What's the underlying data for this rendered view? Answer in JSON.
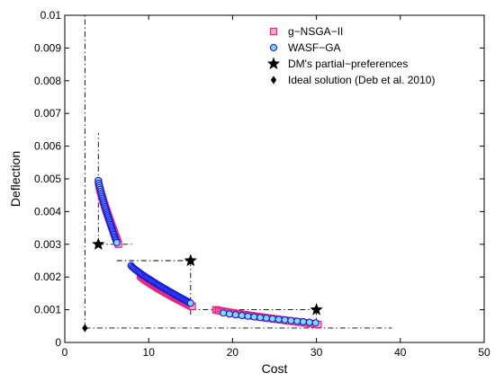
{
  "chart_data": {
    "type": "scatter",
    "xlabel": "Cost",
    "ylabel": "Deflection",
    "xlim": [
      0,
      50
    ],
    "ylim": [
      0,
      0.01
    ],
    "xticks": [
      "0",
      "10",
      "20",
      "30",
      "40",
      "50"
    ],
    "yticks": [
      "0",
      "0.001",
      "0.002",
      "0.003",
      "0.004",
      "0.005",
      "0.006",
      "0.007",
      "0.008",
      "0.009",
      "0.01"
    ],
    "grid": false,
    "legend_position": "top-right",
    "series": [
      {
        "name": "g−NSGA−II",
        "marker": "square",
        "color": "#e8237a",
        "fill": "#f7a6cc",
        "segments": [
          {
            "x_start": 4.0,
            "x_end": 6.4,
            "y_start": 0.0049,
            "y_end": 0.003,
            "count": 40
          },
          {
            "x_start": 9.0,
            "x_end": 15.2,
            "y_start": 0.00205,
            "y_end": 0.0011,
            "count": 60
          },
          {
            "x_start": 18.0,
            "x_end": 30.2,
            "y_start": 0.001,
            "y_end": 0.00055,
            "count": 70
          }
        ]
      },
      {
        "name": "WASF−GA",
        "marker": "circle",
        "color": "#1a1adf",
        "fill": "#7fdcf5",
        "segments": [
          {
            "x_start": 4.0,
            "x_end": 6.2,
            "y_start": 0.00495,
            "y_end": 0.00305,
            "count": 40
          },
          {
            "x_start": 7.9,
            "x_end": 15.0,
            "y_start": 0.00235,
            "y_end": 0.0012,
            "count": 60
          },
          {
            "x_start": 18.9,
            "x_end": 29.9,
            "y_start": 0.0009,
            "y_end": 0.0006,
            "count": 16
          }
        ]
      }
    ],
    "preference_points": {
      "name": "DM's partial−preferences",
      "marker": "star",
      "points": [
        [
          4.0,
          0.003
        ],
        [
          15.0,
          0.0025
        ],
        [
          30.0,
          0.001
        ]
      ]
    },
    "ideal_point": {
      "name": "Ideal solution (Deb et al. 2010)",
      "marker": "diamond",
      "x": 2.4,
      "y": 0.00044
    },
    "reference_lines": [
      {
        "type": "vertical",
        "x": 2.4,
        "y_from": 0.00044,
        "y_to": 0.01
      },
      {
        "type": "horizontal",
        "y": 0.00044,
        "x_from": 2.4,
        "x_to": 39.0
      },
      {
        "type": "vertical",
        "x": 4.0,
        "y_from": 0.003,
        "y_to": 0.0064
      },
      {
        "type": "horizontal",
        "y": 0.003,
        "x_from": 4.0,
        "x_to": 8.0
      },
      {
        "type": "horizontal",
        "y": 0.0025,
        "x_from": 6.2,
        "x_to": 15.0
      },
      {
        "type": "vertical",
        "x": 15.0,
        "y_from": 0.0025,
        "y_to": 0.0008
      },
      {
        "type": "horizontal",
        "y": 0.001,
        "x_from": 15.0,
        "x_to": 30.0
      },
      {
        "type": "vertical",
        "x": 30.0,
        "y_from": 0.001,
        "y_to": 0.0004
      }
    ]
  }
}
